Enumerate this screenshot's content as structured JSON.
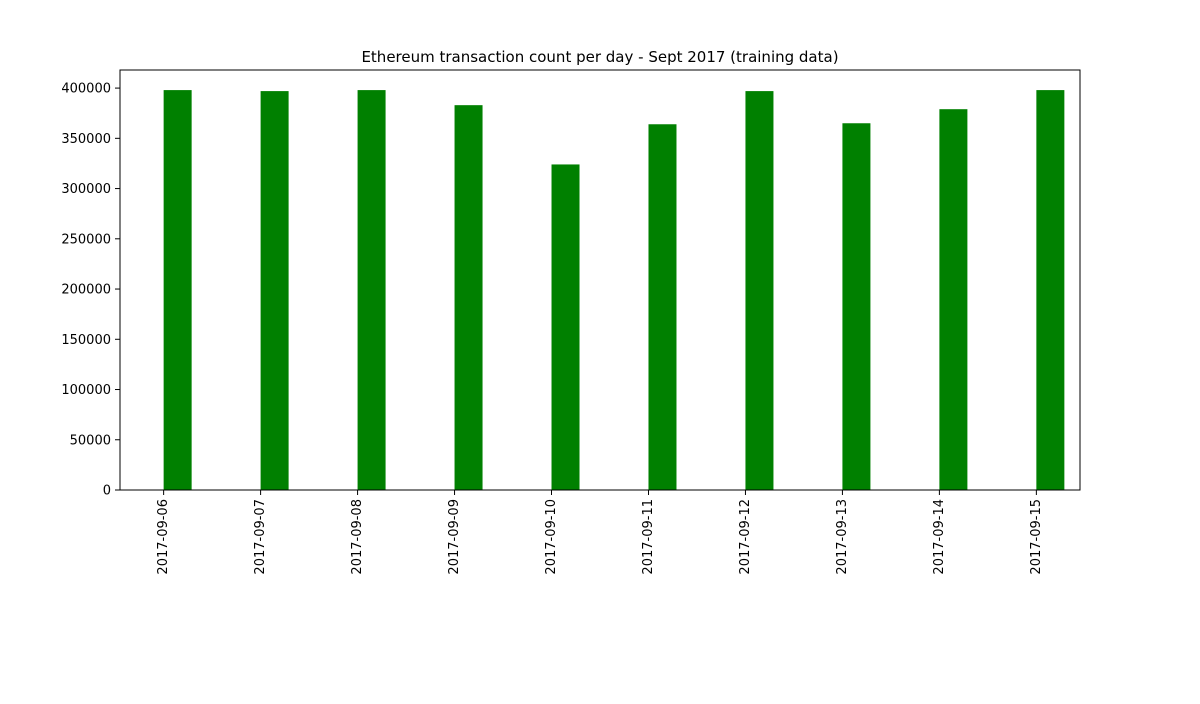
{
  "chart_data": {
    "type": "bar",
    "title": "Ethereum transaction count per day - Sept 2017 (training data)",
    "xlabel": "",
    "ylabel": "",
    "categories": [
      "2017-09-06",
      "2017-09-07",
      "2017-09-08",
      "2017-09-09",
      "2017-09-10",
      "2017-09-11",
      "2017-09-12",
      "2017-09-13",
      "2017-09-14",
      "2017-09-15"
    ],
    "bar_dates": [
      "2017-09-06",
      "2017-09-07",
      "2017-09-08",
      "2017-09-09",
      "2017-09-10",
      "2017-09-11",
      "2017-09-12",
      "2017-09-13",
      "2017-09-14",
      "2017-09-15"
    ],
    "x_ticks": [
      "2017-09-06",
      "2017-09-07",
      "2017-09-08",
      "2017-09-09",
      "2017-09-10",
      "2017-09-11",
      "2017-09-12",
      "2017-09-13",
      "2017-09-14",
      "2017-09-15"
    ],
    "values": [
      398000,
      397000,
      398000,
      383000,
      324000,
      364000,
      397000,
      365000,
      379000,
      398000
    ],
    "ylim": [
      0,
      418000
    ],
    "y_ticks": [
      0,
      50000,
      100000,
      150000,
      200000,
      250000,
      300000,
      350000,
      400000
    ],
    "y_tick_labels": [
      "0",
      "50000",
      "100000",
      "150000",
      "200000",
      "250000",
      "300000",
      "350000",
      "400000"
    ],
    "bar_color": "#008000",
    "grid": false,
    "legend": "none"
  }
}
